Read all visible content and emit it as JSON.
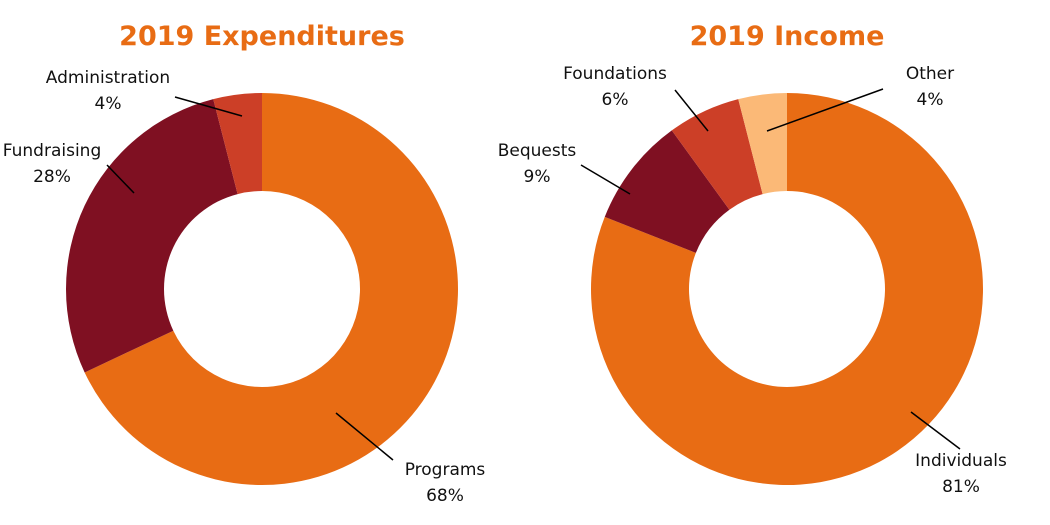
{
  "chart_data": [
    {
      "type": "pie",
      "donut": true,
      "title": "2019 Expenditures",
      "categories": [
        "Programs",
        "Fundraising",
        "Administration"
      ],
      "values": [
        68,
        28,
        4
      ],
      "value_labels": [
        "68%",
        "28%",
        "4%"
      ],
      "colors": [
        "#E86C14",
        "#7F1022",
        "#CC3F27"
      ]
    },
    {
      "type": "pie",
      "donut": true,
      "title": "2019 Income",
      "categories": [
        "Individuals",
        "Bequests",
        "Foundations",
        "Other"
      ],
      "values": [
        81,
        9,
        6,
        4
      ],
      "value_labels": [
        "81%",
        "9%",
        "6%",
        "4%"
      ],
      "colors": [
        "#E86C14",
        "#7F1022",
        "#CC3F27",
        "#FBB977"
      ]
    }
  ]
}
